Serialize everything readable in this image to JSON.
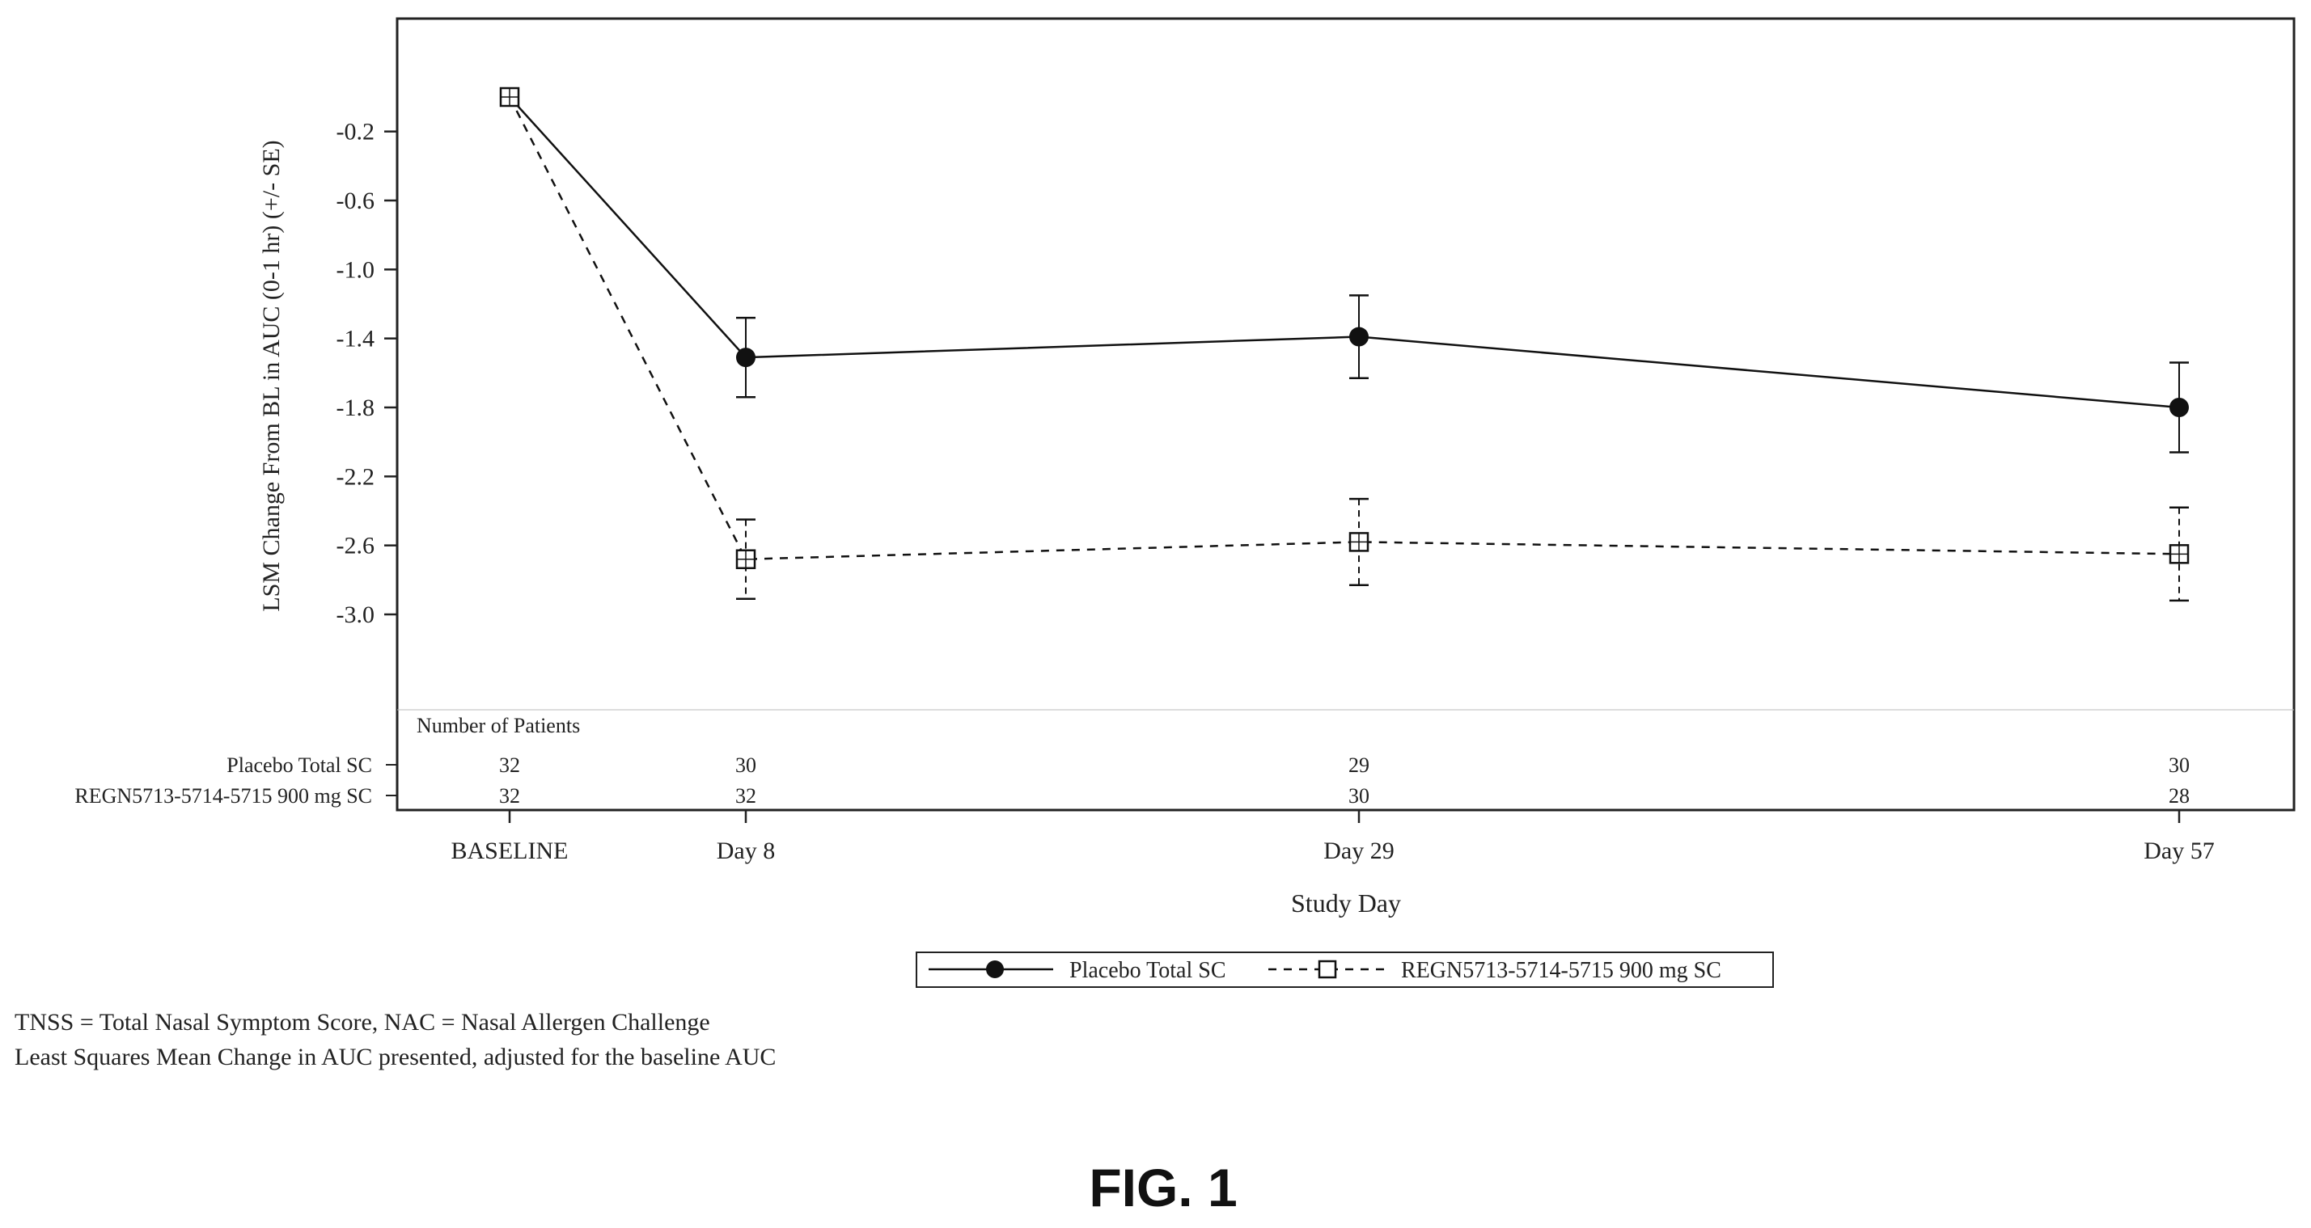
{
  "chart_data": {
    "type": "line",
    "categories": [
      "BASELINE",
      "Day 8",
      "Day 29",
      "Day 57"
    ],
    "x": [
      0,
      8,
      29,
      57
    ],
    "xlabel": "Study Day",
    "ylabel": "LSM Change From BL in AUC (0-1 hr) (+/- SE)",
    "ylim": [
      -3.5,
      0.3
    ],
    "yticks": [
      -0.2,
      -0.6,
      -1.0,
      -1.4,
      -1.8,
      -2.2,
      -2.6,
      -3.0
    ],
    "ytick_labels": [
      "-0.2",
      "-0.6",
      "-1.0",
      "-1.4",
      "-1.8",
      "-2.2",
      "-2.6",
      "-3.0"
    ],
    "grid": false,
    "legend_position": "bottom-center",
    "series": [
      {
        "name": "Placebo Total SC",
        "marker": "filled-circle",
        "line_style": "solid",
        "values": [
          0.0,
          -1.51,
          -1.39,
          -1.8
        ],
        "se": [
          0.0,
          0.23,
          0.24,
          0.26
        ]
      },
      {
        "name": "REGN5713-5714-5715 900 mg SC",
        "marker": "open-square",
        "line_style": "dashed",
        "values": [
          0.0,
          -2.68,
          -2.58,
          -2.65
        ],
        "se": [
          0.0,
          0.23,
          0.25,
          0.27
        ]
      }
    ],
    "patients_table": {
      "title": "Number of Patients",
      "rows": [
        {
          "label": "Placebo Total SC",
          "counts": [
            "32",
            "30",
            "29",
            "30"
          ]
        },
        {
          "label": "REGN5713-5714-5715 900 mg SC",
          "counts": [
            "32",
            "32",
            "30",
            "28"
          ]
        }
      ]
    }
  },
  "footnotes": [
    "TNSS = Total Nasal Symptom Score, NAC = Nasal Allergen Challenge",
    "Least Squares Mean Change in AUC presented, adjusted for the baseline AUC"
  ],
  "figure_label": "FIG. 1",
  "colors": {
    "line": "#111111",
    "frame": "#222222",
    "text": "#222222"
  }
}
